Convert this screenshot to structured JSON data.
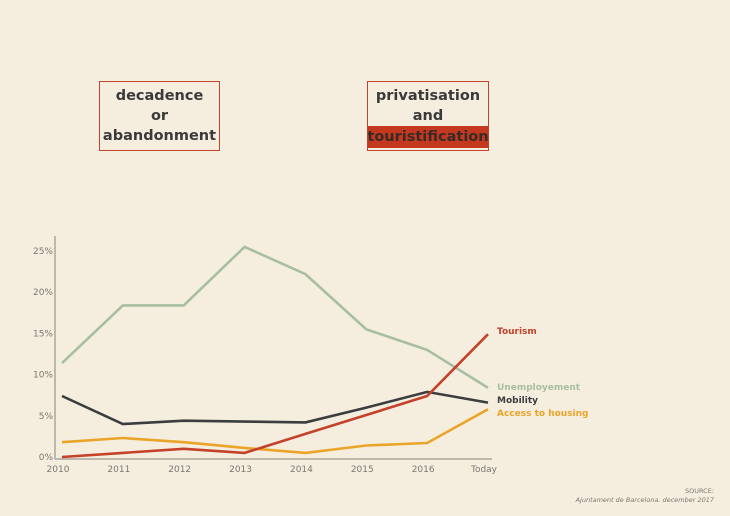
{
  "boxes": {
    "left": {
      "lines": [
        "decadence",
        "or",
        "abandonment"
      ]
    },
    "right": {
      "lines": [
        "privatisation",
        "and"
      ],
      "highlight": "touristification"
    }
  },
  "colors": {
    "tourism": "#c4412a",
    "unemployment": "#a7bfa0",
    "mobility": "#3b3d3e",
    "housing": "#eaa42a",
    "axis": "#a9a59b",
    "box_border": "#c4412a",
    "highlight": "#c4381f"
  },
  "chart_data": {
    "type": "line",
    "title": "",
    "xlabel": "",
    "ylabel": "",
    "x": [
      "2010",
      "2011",
      "2012",
      "2013",
      "2014",
      "2015",
      "2016",
      "Today"
    ],
    "ylim": [
      0,
      26
    ],
    "yticks": [
      0,
      5,
      10,
      15,
      20,
      25
    ],
    "ytick_labels": [
      "0%",
      "5%",
      "10%",
      "15%",
      "20%",
      "25%"
    ],
    "grid": false,
    "legend_placement": "right-end-labels",
    "series": [
      {
        "name": "Unemployement",
        "key": "unemployment",
        "values": [
          11.4,
          18.4,
          18.4,
          25.5,
          22.2,
          15.5,
          13.0,
          8.4
        ]
      },
      {
        "name": "Mobility",
        "key": "mobility",
        "values": [
          7.4,
          4.0,
          4.4,
          4.3,
          4.2,
          6.0,
          7.9,
          6.6
        ]
      },
      {
        "name": "Access to housing",
        "key": "housing",
        "values": [
          1.8,
          2.3,
          1.8,
          1.1,
          0.5,
          1.4,
          1.7,
          5.8
        ]
      },
      {
        "name": "Tourism",
        "key": "tourism",
        "values": [
          0.0,
          0.5,
          1.0,
          0.5,
          2.8,
          5.1,
          7.4,
          14.9
        ]
      }
    ]
  },
  "source": {
    "label": "SOURCE:",
    "text": "Ajuntament de Barcelona. december 2017"
  }
}
